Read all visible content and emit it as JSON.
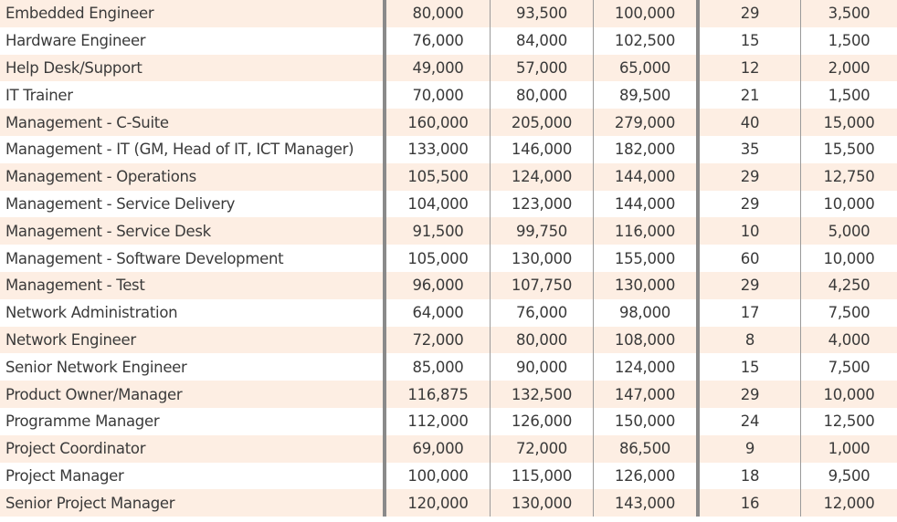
{
  "rows": [
    [
      "Embedded Engineer",
      "80,000",
      "93,500",
      "100,000",
      "29",
      "3,500"
    ],
    [
      "Hardware Engineer",
      "76,000",
      "84,000",
      "102,500",
      "15",
      "1,500"
    ],
    [
      "Help Desk/Support",
      "49,000",
      "57,000",
      "65,000",
      "12",
      "2,000"
    ],
    [
      "IT Trainer",
      "70,000",
      "80,000",
      "89,500",
      "21",
      "1,500"
    ],
    [
      "Management - C-Suite",
      "160,000",
      "205,000",
      "279,000",
      "40",
      "15,000"
    ],
    [
      "Management - IT (GM, Head of IT, ICT Manager)",
      "133,000",
      "146,000",
      "182,000",
      "35",
      "15,500"
    ],
    [
      "Management - Operations",
      "105,500",
      "124,000",
      "144,000",
      "29",
      "12,750"
    ],
    [
      "Management - Service Delivery",
      "104,000",
      "123,000",
      "144,000",
      "29",
      "10,000"
    ],
    [
      "Management - Service Desk",
      "91,500",
      "99,750",
      "116,000",
      "10",
      "5,000"
    ],
    [
      "Management - Software Development",
      "105,000",
      "130,000",
      "155,000",
      "60",
      "10,000"
    ],
    [
      "Management - Test",
      "96,000",
      "107,750",
      "130,000",
      "29",
      "4,250"
    ],
    [
      "Network Administration",
      "64,000",
      "76,000",
      "98,000",
      "17",
      "7,500"
    ],
    [
      "Network Engineer",
      "72,000",
      "80,000",
      "108,000",
      "8",
      "4,000"
    ],
    [
      "Senior Network Engineer",
      "85,000",
      "90,000",
      "124,000",
      "15",
      "7,500"
    ],
    [
      "Product Owner/Manager",
      "116,875",
      "132,500",
      "147,000",
      "29",
      "10,000"
    ],
    [
      "Programme Manager",
      "112,000",
      "126,000",
      "150,000",
      "24",
      "12,500"
    ],
    [
      "Project Coordinator",
      "69,000",
      "72,000",
      "86,500",
      "9",
      "1,000"
    ],
    [
      "Project Manager",
      "100,000",
      "115,000",
      "126,000",
      "18",
      "9,500"
    ],
    [
      "Senior Project Manager",
      "120,000",
      "130,000",
      "143,000",
      "16",
      "12,000"
    ]
  ]
}
